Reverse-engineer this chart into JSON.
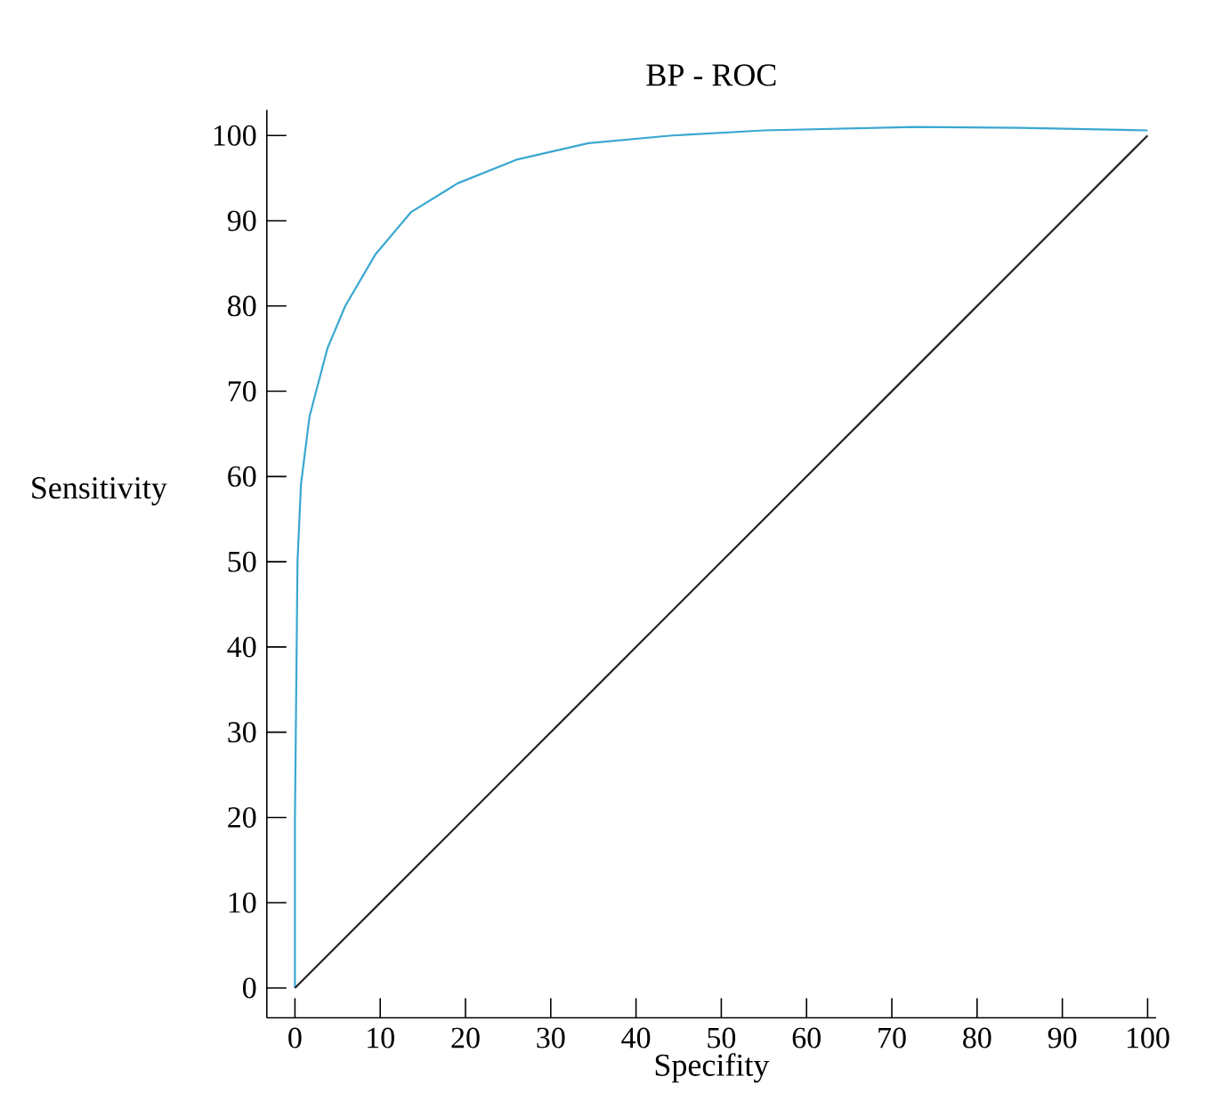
{
  "chart_data": {
    "type": "line",
    "title": "BP - ROC",
    "xlabel": "Specifity",
    "ylabel": "Sensitivity",
    "xlim": [
      -3.3,
      101
    ],
    "ylim": [
      -3.5,
      103
    ],
    "xticks": [
      0,
      10,
      20,
      30,
      40,
      50,
      60,
      70,
      80,
      90,
      100
    ],
    "yticks": [
      0,
      10,
      20,
      30,
      40,
      50,
      60,
      70,
      80,
      90,
      100
    ],
    "series": [
      {
        "color": "#3aa8d0",
        "x": [
          0,
          0,
          0.2,
          0.3,
          0.7,
          1.7,
          3.8,
          5.9,
          9.4,
          13.6,
          19.1,
          26.1,
          34.4,
          44.2,
          55,
          72.7,
          85,
          100
        ],
        "values": [
          0,
          20,
          40,
          50,
          59,
          67,
          75,
          80,
          86,
          91,
          94.4,
          97.2,
          99.1,
          100,
          100.6,
          101,
          100.9,
          100.6
        ]
      },
      {
        "color": "#222222",
        "x": [
          0,
          100
        ],
        "values": [
          0,
          100
        ]
      }
    ]
  }
}
